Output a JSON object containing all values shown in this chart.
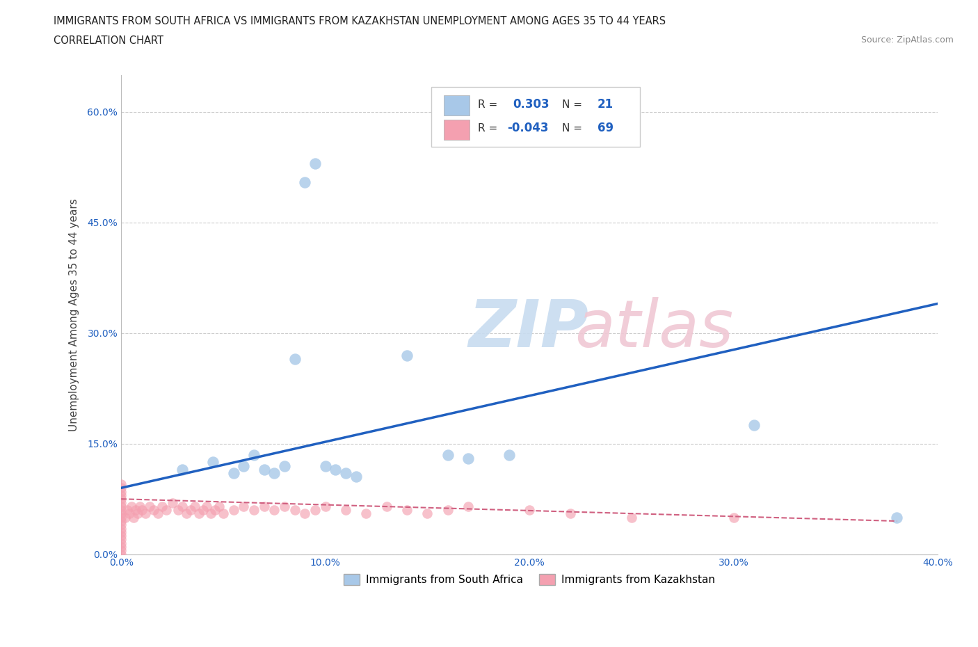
{
  "title_line1": "IMMIGRANTS FROM SOUTH AFRICA VS IMMIGRANTS FROM KAZAKHSTAN UNEMPLOYMENT AMONG AGES 35 TO 44 YEARS",
  "title_line2": "CORRELATION CHART",
  "source": "Source: ZipAtlas.com",
  "ylabel": "Unemployment Among Ages 35 to 44 years",
  "xlim": [
    0.0,
    0.4
  ],
  "ylim": [
    0.0,
    0.65
  ],
  "x_ticks": [
    0.0,
    0.1,
    0.2,
    0.3,
    0.4
  ],
  "x_tick_labels": [
    "0.0%",
    "10.0%",
    "20.0%",
    "30.0%",
    "40.0%"
  ],
  "y_ticks": [
    0.0,
    0.15,
    0.3,
    0.45,
    0.6
  ],
  "y_tick_labels": [
    "0.0%",
    "15.0%",
    "30.0%",
    "45.0%",
    "60.0%"
  ],
  "south_africa_color": "#A8C8E8",
  "kazakhstan_color": "#F4A0B0",
  "regression_sa_color": "#2060C0",
  "regression_kaz_color": "#D06080",
  "legend_r_sa": "0.303",
  "legend_n_sa": "21",
  "legend_r_kaz": "-0.043",
  "legend_n_kaz": "69",
  "grid_color": "#CCCCCC",
  "title_fontsize": 11,
  "axis_label_fontsize": 11,
  "tick_fontsize": 10,
  "sa_x": [
    0.03,
    0.045,
    0.055,
    0.06,
    0.065,
    0.07,
    0.075,
    0.08,
    0.085,
    0.09,
    0.095,
    0.1,
    0.105,
    0.11,
    0.115,
    0.14,
    0.16,
    0.17,
    0.19,
    0.31,
    0.38
  ],
  "sa_y": [
    0.115,
    0.125,
    0.11,
    0.12,
    0.135,
    0.115,
    0.11,
    0.12,
    0.265,
    0.505,
    0.53,
    0.12,
    0.115,
    0.11,
    0.105,
    0.27,
    0.135,
    0.13,
    0.135,
    0.175,
    0.05
  ],
  "kaz_x": [
    0.0,
    0.0,
    0.0,
    0.0,
    0.0,
    0.0,
    0.0,
    0.0,
    0.0,
    0.0,
    0.0,
    0.0,
    0.0,
    0.0,
    0.0,
    0.0,
    0.0,
    0.0,
    0.0,
    0.0,
    0.002,
    0.003,
    0.004,
    0.005,
    0.006,
    0.007,
    0.008,
    0.009,
    0.01,
    0.012,
    0.014,
    0.016,
    0.018,
    0.02,
    0.022,
    0.025,
    0.028,
    0.03,
    0.032,
    0.034,
    0.036,
    0.038,
    0.04,
    0.042,
    0.044,
    0.046,
    0.048,
    0.05,
    0.055,
    0.06,
    0.065,
    0.07,
    0.075,
    0.08,
    0.085,
    0.09,
    0.095,
    0.1,
    0.11,
    0.12,
    0.13,
    0.14,
    0.15,
    0.16,
    0.17,
    0.2,
    0.22,
    0.25,
    0.3
  ],
  "kaz_y": [
    0.0,
    0.005,
    0.01,
    0.015,
    0.02,
    0.025,
    0.03,
    0.035,
    0.04,
    0.045,
    0.05,
    0.055,
    0.06,
    0.065,
    0.07,
    0.075,
    0.08,
    0.085,
    0.09,
    0.095,
    0.05,
    0.06,
    0.055,
    0.065,
    0.05,
    0.06,
    0.055,
    0.065,
    0.06,
    0.055,
    0.065,
    0.06,
    0.055,
    0.065,
    0.06,
    0.07,
    0.06,
    0.065,
    0.055,
    0.06,
    0.065,
    0.055,
    0.06,
    0.065,
    0.055,
    0.06,
    0.065,
    0.055,
    0.06,
    0.065,
    0.06,
    0.065,
    0.06,
    0.065,
    0.06,
    0.055,
    0.06,
    0.065,
    0.06,
    0.055,
    0.065,
    0.06,
    0.055,
    0.06,
    0.065,
    0.06,
    0.055,
    0.05,
    0.05
  ]
}
